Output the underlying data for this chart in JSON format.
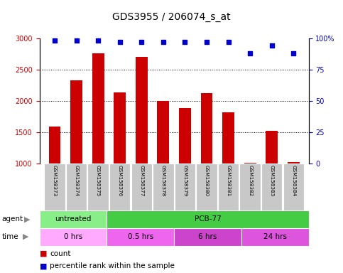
{
  "title": "GDS3955 / 206074_s_at",
  "samples": [
    "GSM158373",
    "GSM158374",
    "GSM158375",
    "GSM158376",
    "GSM158377",
    "GSM158378",
    "GSM158379",
    "GSM158380",
    "GSM158381",
    "GSM158382",
    "GSM158383",
    "GSM158384"
  ],
  "counts": [
    1590,
    2330,
    2760,
    2140,
    2700,
    2000,
    1890,
    2130,
    1820,
    1020,
    1520,
    1030
  ],
  "percentile_ranks": [
    98,
    98,
    98,
    97,
    97,
    97,
    97,
    97,
    97,
    88,
    94,
    88
  ],
  "bar_color": "#cc0000",
  "dot_color": "#0000cc",
  "ylim_left": [
    1000,
    3000
  ],
  "ylim_right": [
    0,
    100
  ],
  "yticks_left": [
    1000,
    1500,
    2000,
    2500,
    3000
  ],
  "yticks_right": [
    0,
    25,
    50,
    75,
    100
  ],
  "yticklabels_right": [
    "0",
    "25",
    "50",
    "75",
    "100%"
  ],
  "agent_groups": [
    {
      "label": "untreated",
      "start": 0,
      "end": 3,
      "color": "#88ee88"
    },
    {
      "label": "PCB-77",
      "start": 3,
      "end": 12,
      "color": "#44cc44"
    }
  ],
  "time_groups": [
    {
      "label": "0 hrs",
      "start": 0,
      "end": 3,
      "color": "#ffaaff"
    },
    {
      "label": "0.5 hrs",
      "start": 3,
      "end": 6,
      "color": "#ee66ee"
    },
    {
      "label": "6 hrs",
      "start": 6,
      "end": 9,
      "color": "#cc44cc"
    },
    {
      "label": "24 hrs",
      "start": 9,
      "end": 12,
      "color": "#dd55dd"
    }
  ],
  "bg_color": "#ffffff",
  "tick_area_bg": "#c8c8c8",
  "legend_items": [
    {
      "label": "count",
      "color": "#cc0000"
    },
    {
      "label": "percentile rank within the sample",
      "color": "#0000cc"
    }
  ]
}
